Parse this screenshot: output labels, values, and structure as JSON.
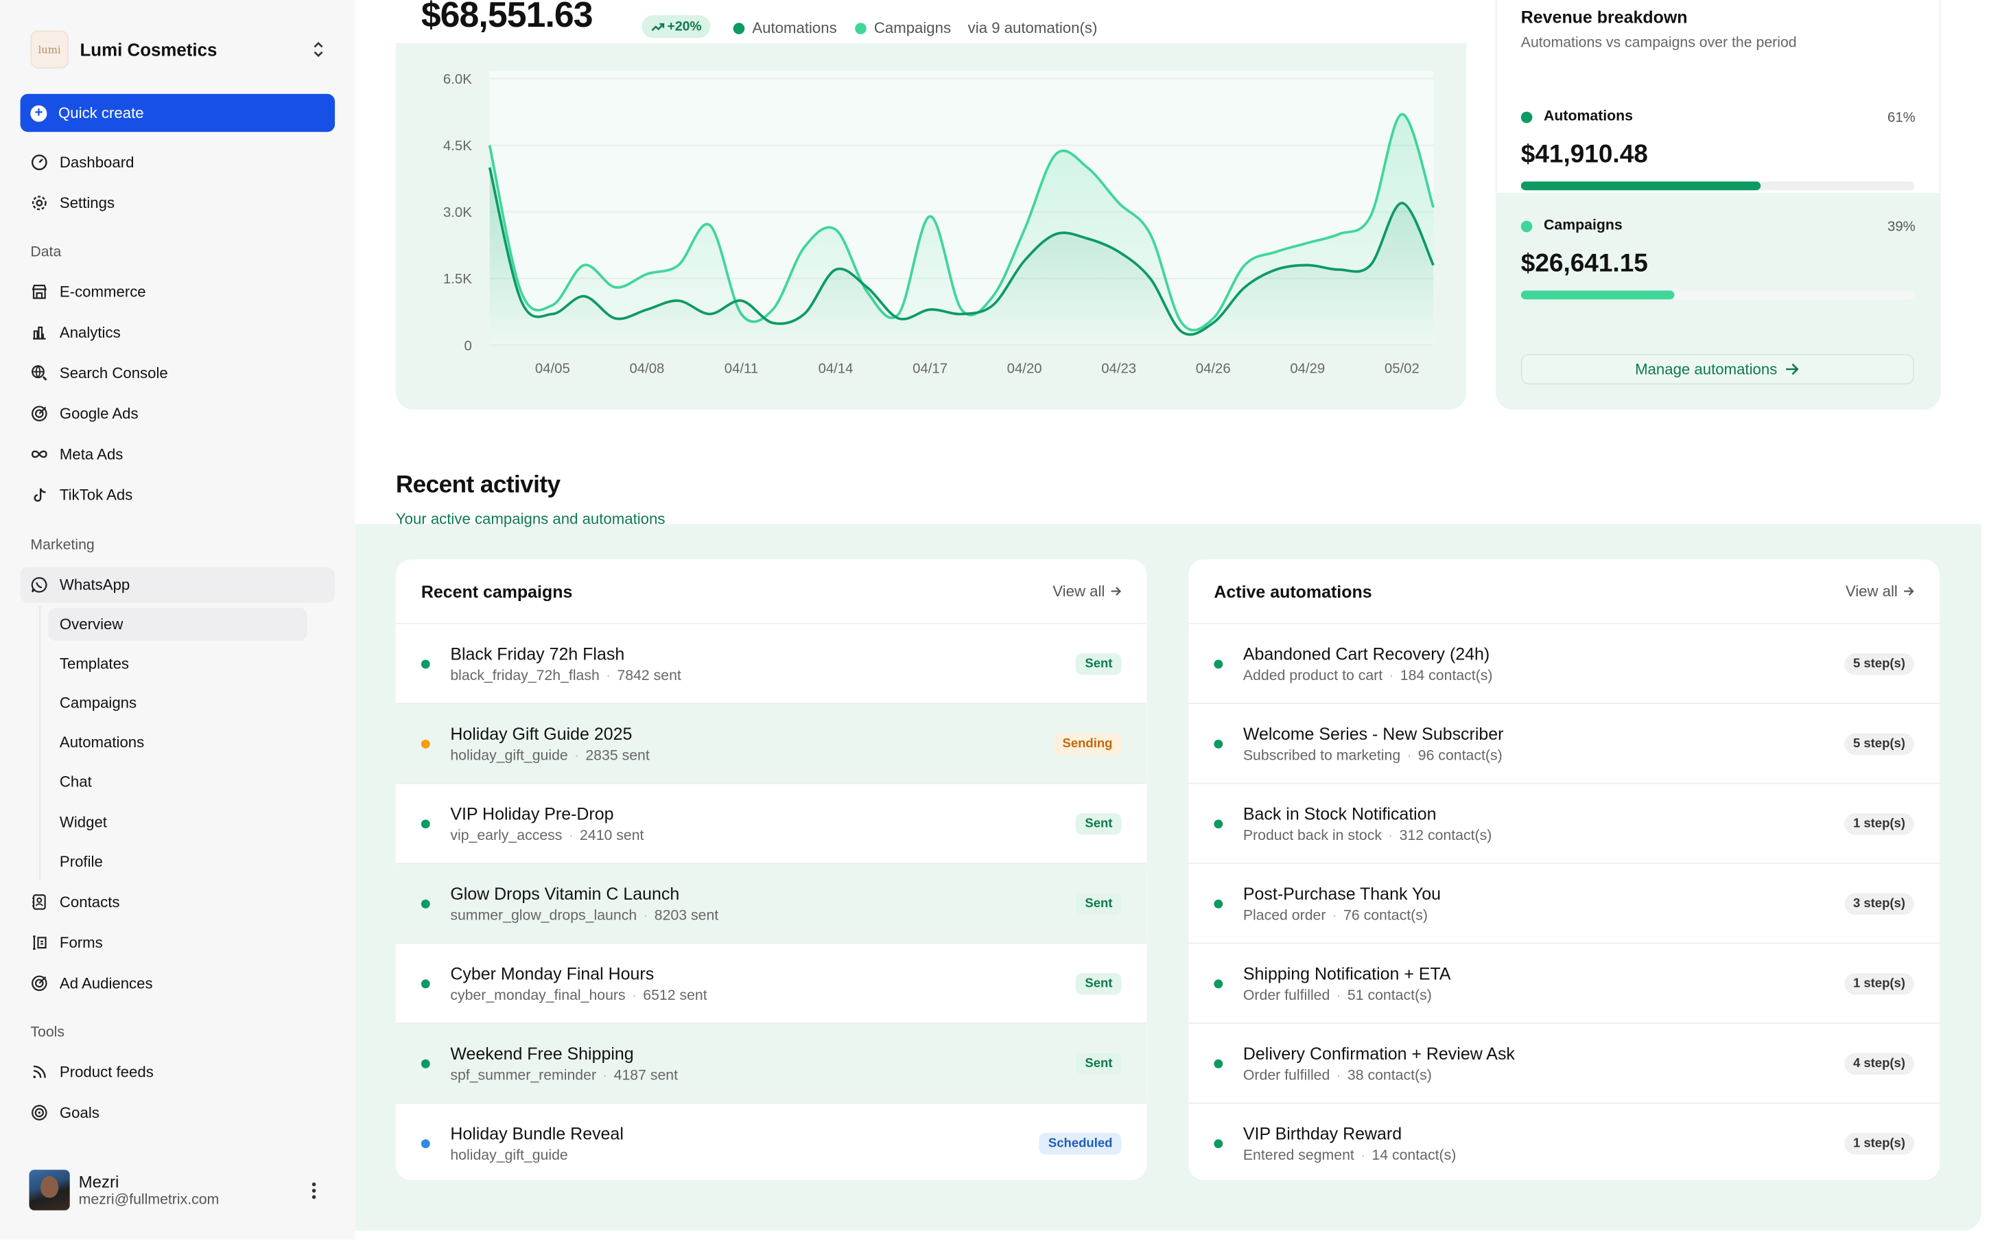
{
  "brand": {
    "logo_text": "lumi",
    "name": "Lumi Cosmetics"
  },
  "quick_create": "Quick create",
  "nav_top": [
    {
      "label": "Dashboard",
      "icon": "dashboard-icon"
    },
    {
      "label": "Settings",
      "icon": "gear-icon"
    }
  ],
  "sections": {
    "data": "Data",
    "marketing": "Marketing",
    "tools": "Tools"
  },
  "nav_data": [
    {
      "label": "E-commerce",
      "icon": "store-icon"
    },
    {
      "label": "Analytics",
      "icon": "bar-chart-icon"
    },
    {
      "label": "Search Console",
      "icon": "globe-search-icon"
    },
    {
      "label": "Google Ads",
      "icon": "target-icon"
    },
    {
      "label": "Meta Ads",
      "icon": "infinity-icon"
    },
    {
      "label": "TikTok Ads",
      "icon": "music-note-icon"
    }
  ],
  "nav_marketing": [
    {
      "label": "WhatsApp",
      "icon": "whatsapp-icon"
    }
  ],
  "whatsapp_sub": [
    "Overview",
    "Templates",
    "Campaigns",
    "Automations",
    "Chat",
    "Widget",
    "Profile"
  ],
  "nav_marketing_2": [
    {
      "label": "Contacts",
      "icon": "contacts-icon"
    },
    {
      "label": "Forms",
      "icon": "form-icon"
    },
    {
      "label": "Ad Audiences",
      "icon": "target-icon"
    }
  ],
  "nav_tools": [
    {
      "label": "Product feeds",
      "icon": "rss-icon"
    },
    {
      "label": "Goals",
      "icon": "goal-icon"
    }
  ],
  "user": {
    "name": "Mezri",
    "email": "mezri@fullmetrix.com"
  },
  "revenue": {
    "total": "$68,551.63",
    "trend": "+20%",
    "legend_automations": "Automations",
    "legend_campaigns": "Campaigns",
    "via": "via 9 automation(s)"
  },
  "colors": {
    "automations": "#0d9a62",
    "campaigns": "#3fd69a",
    "accent": "#1650e6",
    "sending": "#f59e0b",
    "scheduled": "#2f8be0"
  },
  "chart_data": {
    "type": "line",
    "y_ticks": [
      "0",
      "1.5K",
      "3.0K",
      "4.5K",
      "6.0K"
    ],
    "ylim": [
      0,
      6000
    ],
    "x_ticks": [
      "04/05",
      "04/08",
      "04/11",
      "04/14",
      "04/17",
      "04/20",
      "04/23",
      "04/26",
      "04/29",
      "05/02"
    ],
    "x": [
      "04/03",
      "04/04",
      "04/05",
      "04/06",
      "04/07",
      "04/08",
      "04/09",
      "04/10",
      "04/11",
      "04/12",
      "04/13",
      "04/14",
      "04/15",
      "04/16",
      "04/17",
      "04/18",
      "04/19",
      "04/20",
      "04/21",
      "04/22",
      "04/23",
      "04/24",
      "04/25",
      "04/26",
      "04/27",
      "04/28",
      "04/29",
      "04/30",
      "05/01",
      "05/02",
      "05/03"
    ],
    "series": [
      {
        "name": "Campaigns",
        "values": [
          4500,
          1200,
          900,
          1800,
          1300,
          1600,
          1800,
          2700,
          700,
          800,
          2200,
          2600,
          1200,
          700,
          2900,
          800,
          1100,
          2600,
          4300,
          4000,
          3200,
          2500,
          500,
          600,
          1800,
          2100,
          2300,
          2500,
          2900,
          5200,
          3100
        ]
      },
      {
        "name": "Automations",
        "values": [
          4000,
          1000,
          700,
          1100,
          600,
          800,
          1000,
          700,
          1000,
          500,
          700,
          1700,
          1300,
          600,
          800,
          700,
          900,
          1900,
          2500,
          2400,
          2100,
          1500,
          300,
          500,
          1300,
          1700,
          1800,
          1700,
          1800,
          3200,
          1800
        ]
      }
    ]
  },
  "breakdown": {
    "title": "Revenue breakdown",
    "subtitle": "Automations vs campaigns over the period",
    "automations": {
      "label": "Automations",
      "pct": "61%",
      "amount": "$41,910.48",
      "fill": 0.61
    },
    "campaigns": {
      "label": "Campaigns",
      "pct": "39%",
      "amount": "$26,641.15",
      "fill": 0.39
    },
    "manage": "Manage automations"
  },
  "activity": {
    "title": "Recent activity",
    "subtitle": "Your active campaigns and automations"
  },
  "campaigns": {
    "title": "Recent campaigns",
    "view_all": "View all",
    "rows": [
      {
        "name": "Black Friday 72h Flash",
        "slug": "black_friday_72h_flash",
        "count": "7842 sent",
        "status": "Sent",
        "kind": "sent"
      },
      {
        "name": "Holiday Gift Guide 2025",
        "slug": "holiday_gift_guide",
        "count": "2835 sent",
        "status": "Sending",
        "kind": "sending"
      },
      {
        "name": "VIP Holiday Pre-Drop",
        "slug": "vip_early_access",
        "count": "2410 sent",
        "status": "Sent",
        "kind": "sent"
      },
      {
        "name": "Glow Drops Vitamin C Launch",
        "slug": "summer_glow_drops_launch",
        "count": "8203 sent",
        "status": "Sent",
        "kind": "sent"
      },
      {
        "name": "Cyber Monday Final Hours",
        "slug": "cyber_monday_final_hours",
        "count": "6512 sent",
        "status": "Sent",
        "kind": "sent"
      },
      {
        "name": "Weekend Free Shipping",
        "slug": "spf_summer_reminder",
        "count": "4187 sent",
        "status": "Sent",
        "kind": "sent"
      },
      {
        "name": "Holiday Bundle Reveal",
        "slug": "holiday_gift_guide",
        "count": "",
        "status": "Scheduled",
        "kind": "scheduled"
      }
    ]
  },
  "automations": {
    "title": "Active automations",
    "view_all": "View all",
    "rows": [
      {
        "name": "Abandoned Cart Recovery (24h)",
        "trigger": "Added product to cart",
        "count": "184 contact(s)",
        "steps": "5 step(s)"
      },
      {
        "name": "Welcome Series - New Subscriber",
        "trigger": "Subscribed to marketing",
        "count": "96 contact(s)",
        "steps": "5 step(s)"
      },
      {
        "name": "Back in Stock Notification",
        "trigger": "Product back in stock",
        "count": "312 contact(s)",
        "steps": "1 step(s)"
      },
      {
        "name": "Post-Purchase Thank You",
        "trigger": "Placed order",
        "count": "76 contact(s)",
        "steps": "3 step(s)"
      },
      {
        "name": "Shipping Notification + ETA",
        "trigger": "Order fulfilled",
        "count": "51 contact(s)",
        "steps": "1 step(s)"
      },
      {
        "name": "Delivery Confirmation + Review Ask",
        "trigger": "Order fulfilled",
        "count": "38 contact(s)",
        "steps": "4 step(s)"
      },
      {
        "name": "VIP Birthday Reward",
        "trigger": "Entered segment",
        "count": "14 contact(s)",
        "steps": "1 step(s)"
      }
    ]
  }
}
